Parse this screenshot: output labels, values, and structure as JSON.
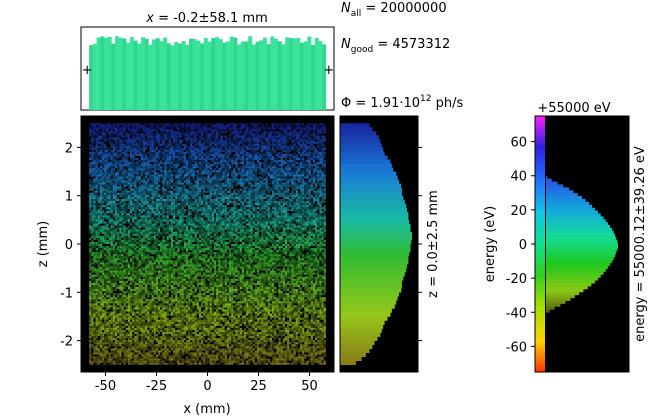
{
  "annotations": {
    "x_title_prefix": "x",
    "x_title_rest": " = -0.2±58.1 mm",
    "n_all_label": "N",
    "n_all_sub": "all",
    "n_all_value": " = 20000000",
    "n_good_label": "N",
    "n_good_sub": "good",
    "n_good_value": " = 4573312",
    "flux_prefix": "Φ = 1.91·10",
    "flux_exp": "12",
    "flux_unit": " ph/s",
    "energy_offset": "+55000 eV",
    "energy_offset_color": "#008000",
    "z_side_label": "z = 0.0±2.5 mm",
    "energy_side_label": "energy = 55000.12±39.26 eV"
  },
  "chart_data": [
    {
      "type": "heatmap",
      "name": "xz-beam-image",
      "xlabel": "x (mm)",
      "ylabel": "z (mm)",
      "xlim": [
        -62,
        62
      ],
      "ylim": [
        -2.65,
        2.65
      ],
      "xticks": [
        -50,
        -25,
        0,
        25,
        50
      ],
      "xtick_labels": [
        "-50",
        "-25",
        "0",
        "25",
        "50"
      ],
      "yticks": [
        -2,
        -1,
        0,
        1,
        2
      ],
      "ytick_labels": [
        "-2",
        "-1",
        "0",
        "1",
        "2"
      ],
      "beam_extent_x": [
        -58,
        58
      ],
      "beam_extent_z": [
        -2.5,
        2.5
      ],
      "background": "#000000",
      "color_encodes": "energy"
    },
    {
      "type": "bar",
      "name": "x-histogram",
      "orientation": "vertical",
      "x_range": [
        -58,
        58
      ],
      "relative_height_mean": 0.9,
      "relative_height_spread": 0.06,
      "bar_color": "#3be39a"
    },
    {
      "type": "bar",
      "name": "z-histogram",
      "orientation": "horizontal",
      "z_range": [
        -2.5,
        2.5
      ],
      "peak_z": 0.0,
      "bins_top_to_bottom": [
        0.41,
        0.45,
        0.5,
        0.54,
        0.56,
        0.58,
        0.6,
        0.62,
        0.66,
        0.7,
        0.72,
        0.74,
        0.78,
        0.8,
        0.82,
        0.85,
        0.86,
        0.86,
        0.88,
        0.9,
        0.92,
        0.93,
        0.95,
        0.95,
        0.96,
        0.98,
        0.98,
        1.0,
        1.0,
        0.99,
        0.98,
        0.98,
        0.96,
        0.95,
        0.95,
        0.93,
        0.92,
        0.9,
        0.88,
        0.86,
        0.86,
        0.85,
        0.82,
        0.8,
        0.78,
        0.76,
        0.72,
        0.7,
        0.66,
        0.62,
        0.6,
        0.58,
        0.56,
        0.52,
        0.48,
        0.45,
        0.41,
        0.36,
        0.3,
        0.22
      ]
    },
    {
      "type": "bar",
      "name": "energy-histogram",
      "orientation": "horizontal",
      "ylabel": "energy (eV)",
      "ylim": [
        -75,
        75
      ],
      "yticks": [
        -60,
        -40,
        -20,
        0,
        20,
        40,
        60
      ],
      "ytick_labels": [
        "-60",
        "-40",
        "-20",
        "0",
        "20",
        "40",
        "60"
      ],
      "energy_range": [
        -40,
        40
      ],
      "bins_top_to_bottom": [
        0.02,
        0.08,
        0.16,
        0.24,
        0.32,
        0.38,
        0.44,
        0.5,
        0.55,
        0.6,
        0.64,
        0.68,
        0.72,
        0.76,
        0.8,
        0.83,
        0.86,
        0.89,
        0.92,
        0.94,
        0.96,
        0.97,
        0.99,
        1.0,
        1.0,
        0.99,
        0.97,
        0.96,
        0.94,
        0.92,
        0.89,
        0.86,
        0.83,
        0.8,
        0.76,
        0.72,
        0.68,
        0.63,
        0.58,
        0.52,
        0.46,
        0.4,
        0.34,
        0.27,
        0.2,
        0.12,
        0.05
      ],
      "colorbar_range": [
        -75,
        75
      ]
    }
  ]
}
